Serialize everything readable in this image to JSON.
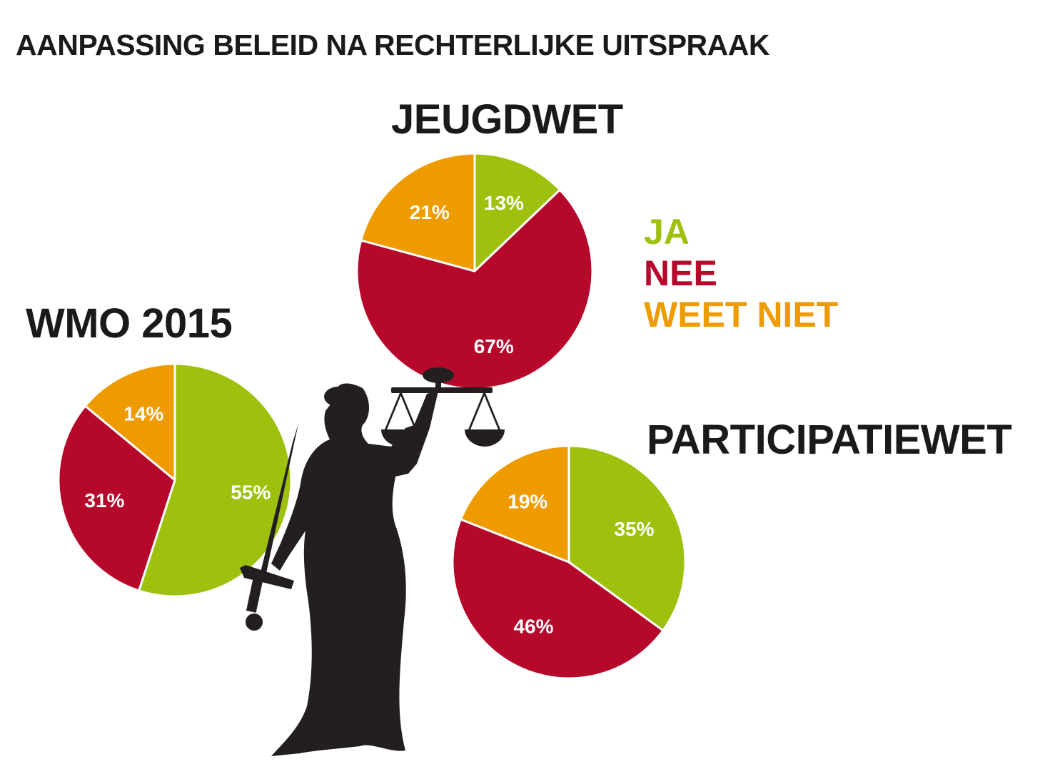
{
  "title": "AANPASSING BELEID NA RECHTERLIJKE UITSPRAAK",
  "colors": {
    "ja": "#9dc10c",
    "nee": "#b5082b",
    "weet_niet": "#ee9b00",
    "figure": "#231f20"
  },
  "legend": [
    {
      "label": "JA",
      "color": "#9dc10c"
    },
    {
      "label": "NEE",
      "color": "#b5082b"
    },
    {
      "label": "WEET NIET",
      "color": "#ee9b00"
    }
  ],
  "chart_data": [
    {
      "type": "pie",
      "title": "JEUGDWET",
      "categories": [
        "JA",
        "NEE",
        "WEET NIET"
      ],
      "values": [
        13,
        67,
        21
      ],
      "labels": [
        "13%",
        "67%",
        "21%"
      ]
    },
    {
      "type": "pie",
      "title": "WMO 2015",
      "categories": [
        "JA",
        "NEE",
        "WEET NIET"
      ],
      "values": [
        55,
        31,
        14
      ],
      "labels": [
        "55%",
        "31%",
        "14%"
      ]
    },
    {
      "type": "pie",
      "title": "PARTICIPATIEWET",
      "categories": [
        "JA",
        "NEE",
        "WEET NIET"
      ],
      "values": [
        35,
        46,
        19
      ],
      "labels": [
        "35%",
        "46%",
        "19%"
      ]
    }
  ],
  "illustration": {
    "icon": "lady-justice-icon"
  }
}
